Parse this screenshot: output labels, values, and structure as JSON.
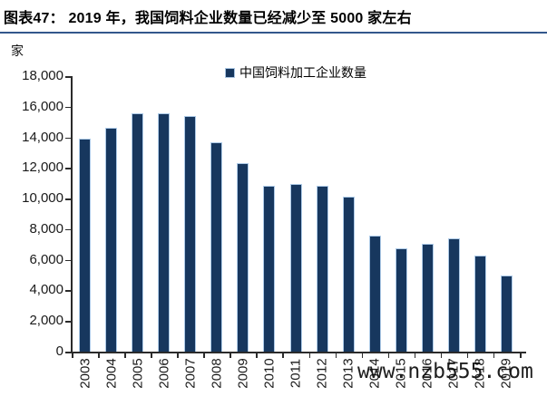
{
  "header": {
    "title": "图表47： 2019 年，我国饲料企业数量已经减少至 5000 家左右",
    "underline_color": "#33578C"
  },
  "watermark": {
    "text": "www.nzb555.com",
    "color": "#0c0c0c"
  },
  "chart_data": {
    "type": "bar",
    "title": "图表47： 2019 年，我国饲料企业数量已经减少至 5000 家左右",
    "unit_label": "家",
    "legend": [
      {
        "label": "中国饲料加工企业数量",
        "color": "#17375E"
      }
    ],
    "legend_position": "top-center",
    "categories": [
      "2003",
      "2004",
      "2005",
      "2006",
      "2007",
      "2008",
      "2009",
      "2010",
      "2011",
      "2012",
      "2013",
      "2014",
      "2015",
      "2016",
      "2017",
      "2018",
      "2019"
    ],
    "values": [
      13900,
      14600,
      15600,
      15550,
      15400,
      13650,
      12300,
      10850,
      10950,
      10850,
      10100,
      7600,
      6750,
      7050,
      7400,
      6250,
      5000
    ],
    "xlabel": "",
    "ylabel": "家",
    "ylim": [
      0,
      18000
    ],
    "y_tick_step": 2000,
    "y_tick_labels": [
      "18,000",
      "16,000",
      "14,000",
      "12,000",
      "10,000",
      "8,000",
      "6,000",
      "4,000",
      "2,000",
      "0"
    ],
    "grid": false,
    "bar_color": "#17375E",
    "bar_border_color": "#AECBE8",
    "axis_color": "#2b2b2b"
  }
}
